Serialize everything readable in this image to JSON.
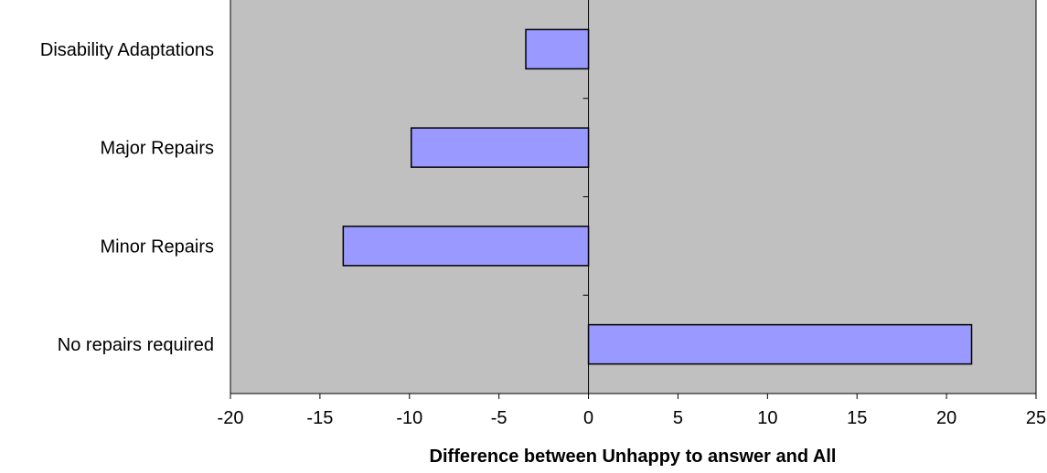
{
  "chart_data": {
    "type": "bar",
    "orientation": "horizontal",
    "categories": [
      "Disability Adaptations",
      "Major Repairs",
      "Minor Repairs",
      "No repairs required"
    ],
    "values": [
      -3.5,
      -9.9,
      -13.7,
      21.4
    ],
    "xlabel": "Difference between Unhappy to answer and All",
    "xlim": [
      -20,
      25
    ],
    "xticks": [
      -20,
      -15,
      -10,
      -5,
      0,
      5,
      10,
      15,
      20,
      25
    ],
    "grid": false,
    "legend": "none",
    "colors": {
      "bar_fill": "#9999ff",
      "bar_stroke": "#000000",
      "plot_background": "#c0c0c0"
    }
  }
}
